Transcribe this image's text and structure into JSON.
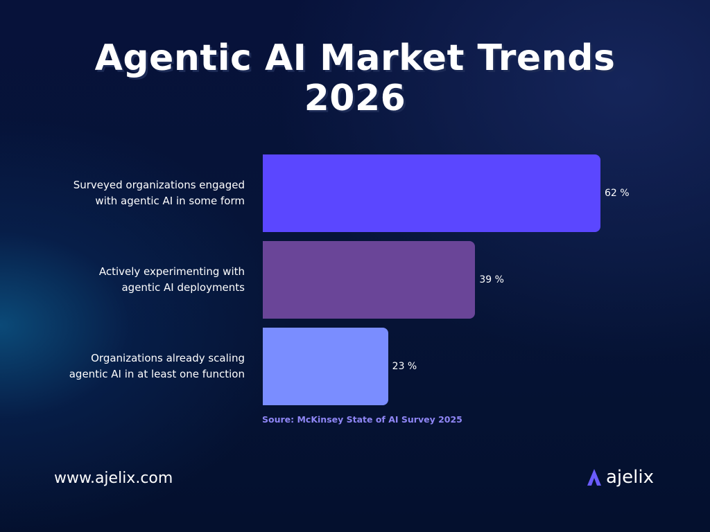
{
  "chart_data": {
    "type": "bar",
    "orientation": "horizontal",
    "title": "Agentic AI Market Trends 2026",
    "title_lines": [
      "Agentic AI Market Trends",
      "2026"
    ],
    "categories": [
      "Surveyed organizations engaged with agentic AI in some form",
      "Actively experimenting with agentic AI deployments",
      "Organizations already scaling agentic AI in at least one function"
    ],
    "category_lines": [
      [
        "Surveyed organizations engaged",
        "with agentic AI in some form"
      ],
      [
        "Actively experimenting with",
        "agentic AI deployments"
      ],
      [
        "Organizations already scaling",
        "agentic AI in at least one function"
      ]
    ],
    "values": [
      62,
      39,
      23
    ],
    "value_labels": [
      "62 %",
      "39 %",
      "23 %"
    ],
    "colors": [
      "#5b47ff",
      "#6a4598",
      "#7a8dff"
    ],
    "unit": "%",
    "xlim": [
      0,
      100
    ],
    "grid": false,
    "source": "Soure: McKinsey State of AI Survey 2025"
  },
  "footer": {
    "url": "www.ajelix.com",
    "brand": "ajelix"
  }
}
